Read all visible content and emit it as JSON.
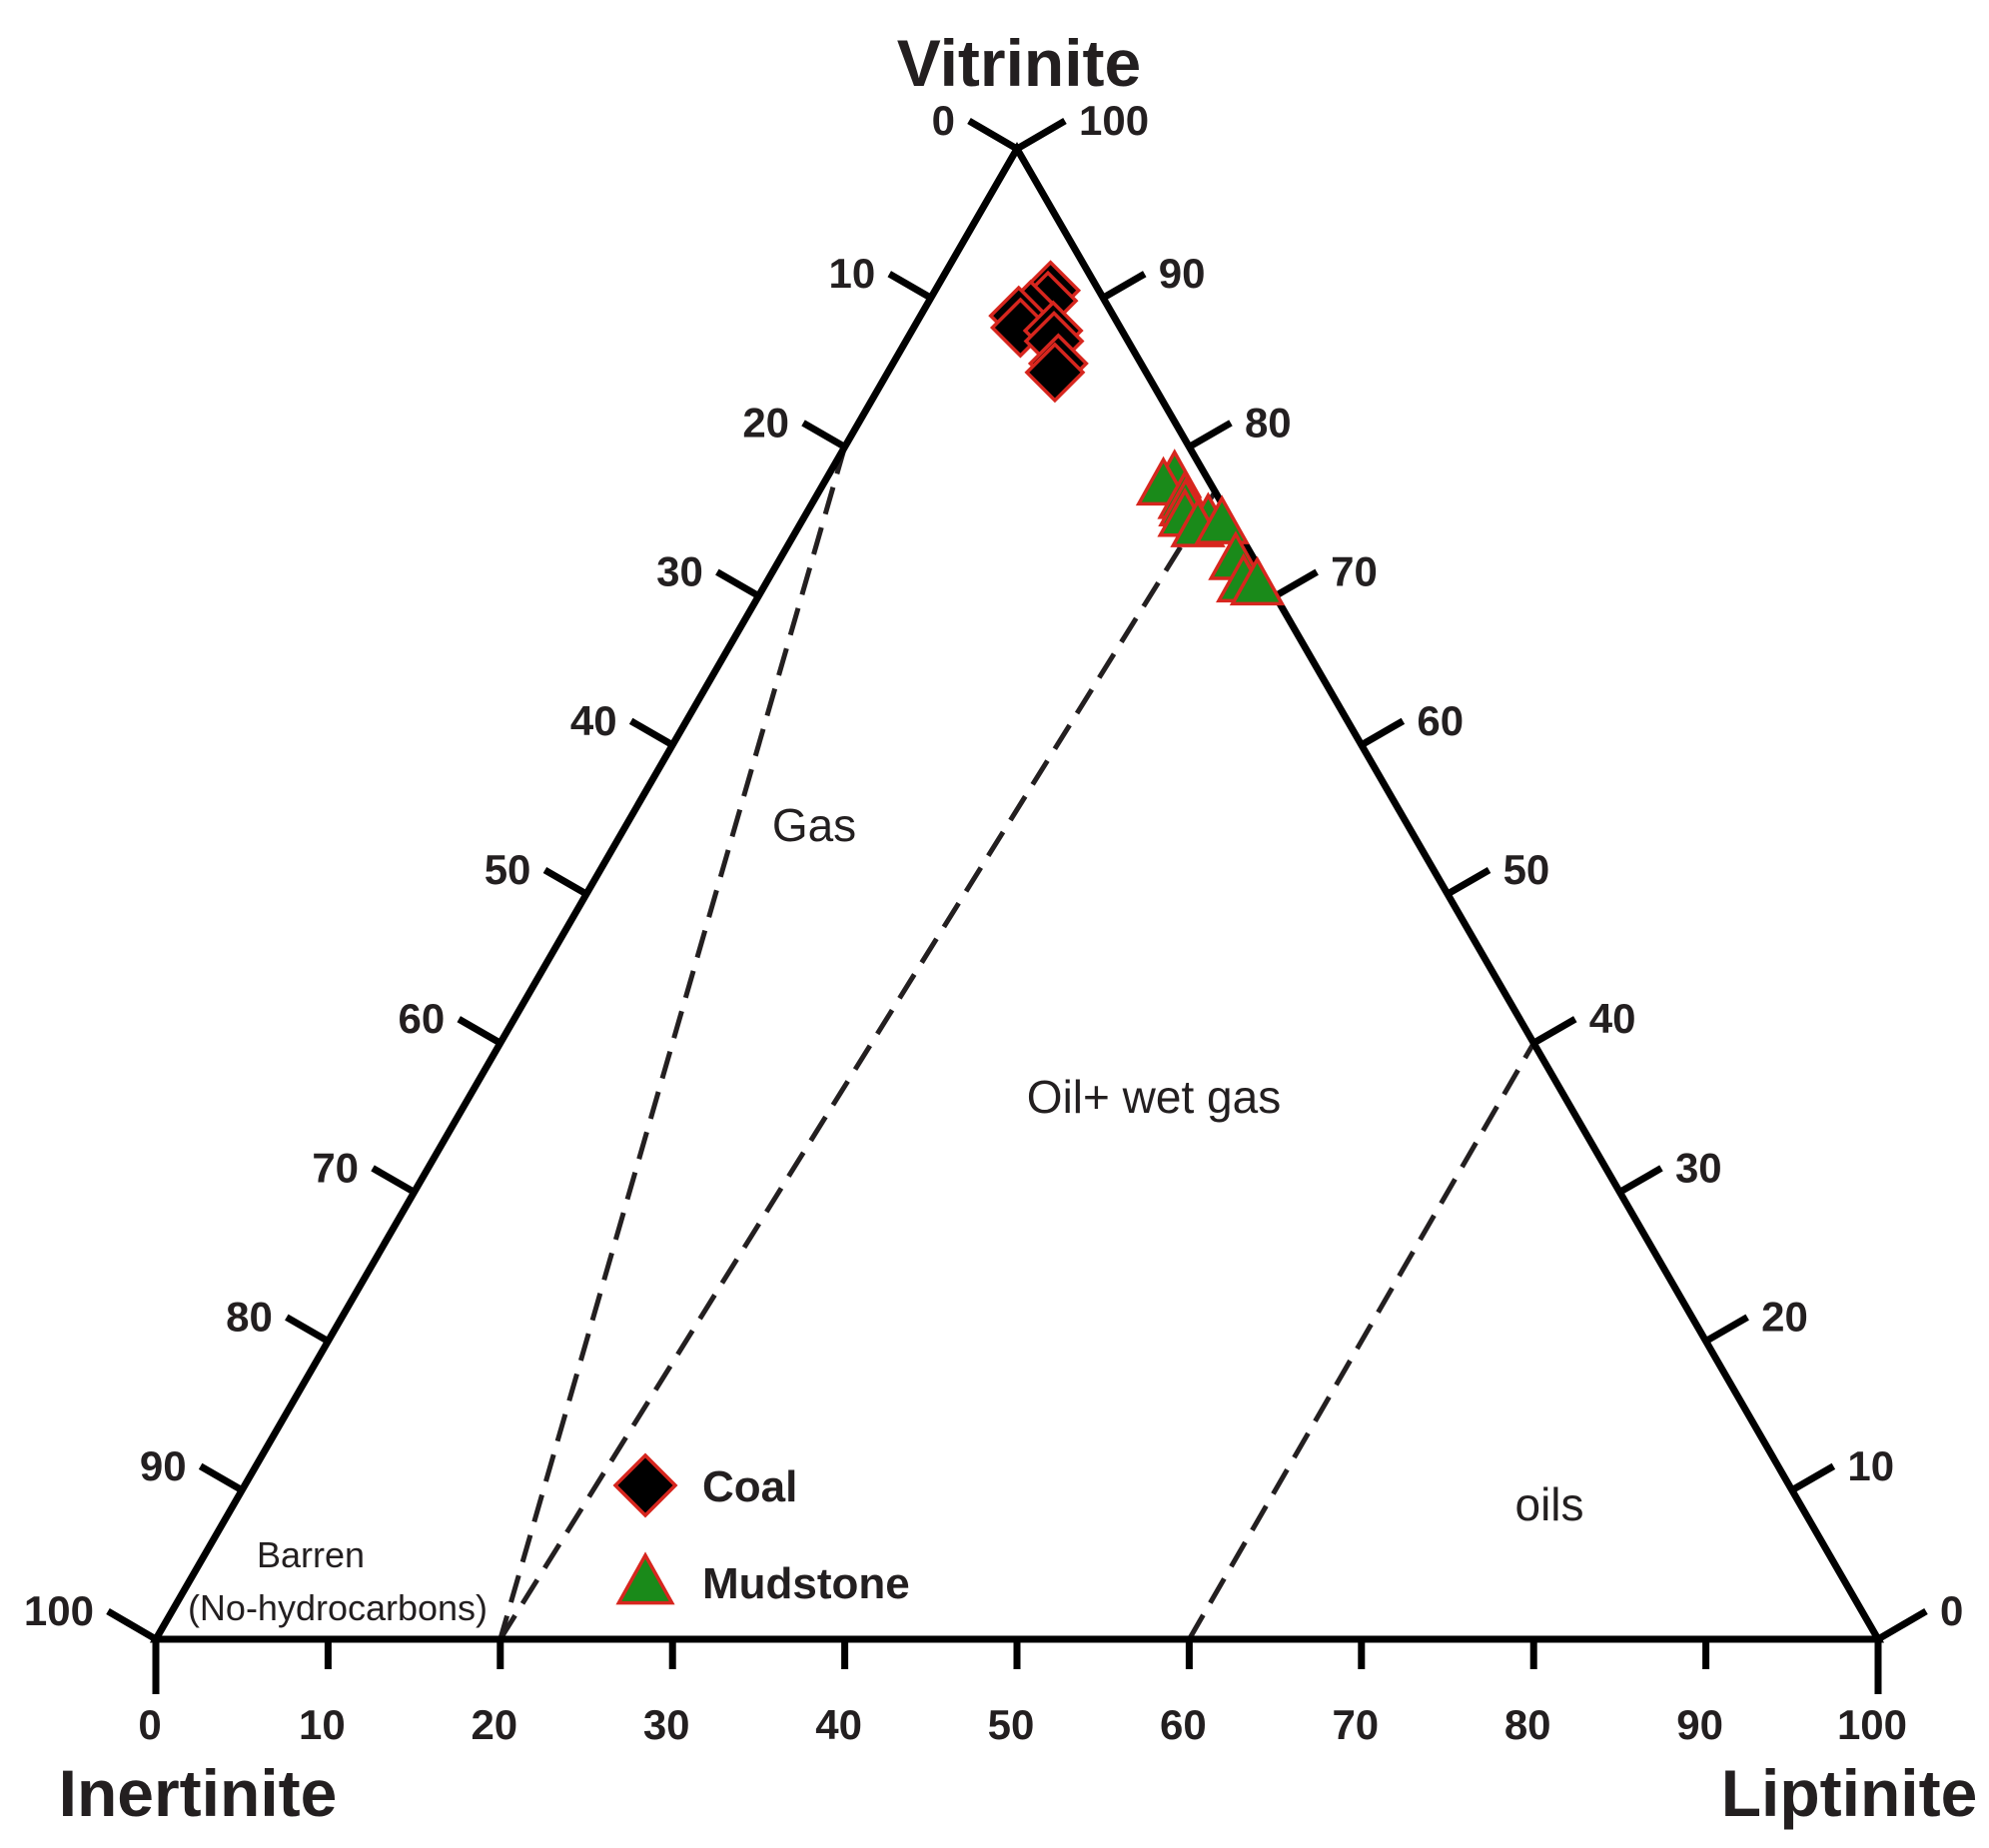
{
  "chart_data": {
    "type": "scatter",
    "subtype": "ternary",
    "apices": {
      "top": "Vitrinite",
      "left": "Inertinite",
      "right": "Liptinite"
    },
    "bottom_axis": {
      "component": "Liptinite",
      "ticks": [
        "0",
        "10",
        "20",
        "30",
        "40",
        "50",
        "60",
        "70",
        "80",
        "90",
        "100"
      ]
    },
    "left_axis": {
      "component": "Inertinite",
      "ticks": [
        "0",
        "10",
        "20",
        "30",
        "40",
        "50",
        "60",
        "70",
        "80",
        "90",
        "100"
      ]
    },
    "right_axis": {
      "component": "Vitrinite",
      "ticks": [
        "100",
        "90",
        "80",
        "70",
        "60",
        "50",
        "40",
        "30",
        "20",
        "10",
        "0"
      ]
    },
    "regions": {
      "gas": "Gas",
      "oil_wet_gas": "Oil+ wet gas",
      "oils": "oils",
      "barren_line1": "Barren",
      "barren_line2": "(No-hydrocarbons)"
    },
    "boundaries": [
      {
        "from": {
          "V": 80,
          "I": 20,
          "L": 0
        },
        "to": {
          "V": 0,
          "I": 80,
          "L": 20
        }
      },
      {
        "from": {
          "V": 0,
          "I": 80,
          "L": 20
        },
        "to": {
          "V": 77,
          "I": 0,
          "L": 23
        }
      },
      {
        "from": {
          "V": 0,
          "I": 40,
          "L": 60
        },
        "to": {
          "V": 40,
          "I": 0,
          "L": 60
        }
      }
    ],
    "series": [
      {
        "name": "Coal",
        "marker": "diamond",
        "fill": "#000000",
        "stroke": "#d7261e",
        "points": [
          {
            "V": 90.5,
            "I": 2.8,
            "L": 6.7
          },
          {
            "V": 89.8,
            "I": 3.3,
            "L": 6.9
          },
          {
            "V": 89.2,
            "I": 4.6,
            "L": 6.2
          },
          {
            "V": 88.8,
            "I": 5.5,
            "L": 5.7
          },
          {
            "V": 88.0,
            "I": 5.8,
            "L": 6.2
          },
          {
            "V": 87.8,
            "I": 4.0,
            "L": 8.2
          },
          {
            "V": 87.1,
            "I": 4.3,
            "L": 8.6
          },
          {
            "V": 85.6,
            "I": 4.8,
            "L": 9.6
          },
          {
            "V": 85.0,
            "I": 5.3,
            "L": 9.7
          }
        ]
      },
      {
        "name": "Mudstone",
        "marker": "triangle",
        "fill": "#1a8a1a",
        "stroke": "#d7261e",
        "points": [
          {
            "V": 77.9,
            "I": 1.9,
            "L": 20.2
          },
          {
            "V": 77.4,
            "I": 2.8,
            "L": 19.8
          },
          {
            "V": 76.5,
            "I": 2.0,
            "L": 21.5
          },
          {
            "V": 76.0,
            "I": 2.2,
            "L": 21.8
          },
          {
            "V": 75.3,
            "I": 2.6,
            "L": 22.1
          },
          {
            "V": 75.0,
            "I": 1.4,
            "L": 23.6
          },
          {
            "V": 74.6,
            "I": 2.2,
            "L": 23.2
          },
          {
            "V": 74.8,
            "I": 0.7,
            "L": 24.5
          },
          {
            "V": 72.4,
            "I": 1.1,
            "L": 26.5
          },
          {
            "V": 70.9,
            "I": 1.4,
            "L": 27.7
          },
          {
            "V": 70.7,
            "I": 0.7,
            "L": 28.6
          }
        ]
      }
    ],
    "legend": {
      "placement": "lower-center",
      "entries": [
        "Coal",
        "Mudstone"
      ]
    },
    "colors": {
      "axis": "#000000",
      "text": "#231f20",
      "marker_stroke": "#d7261e",
      "mudstone_fill": "#1a8a1a",
      "coal_fill": "#000000"
    }
  }
}
